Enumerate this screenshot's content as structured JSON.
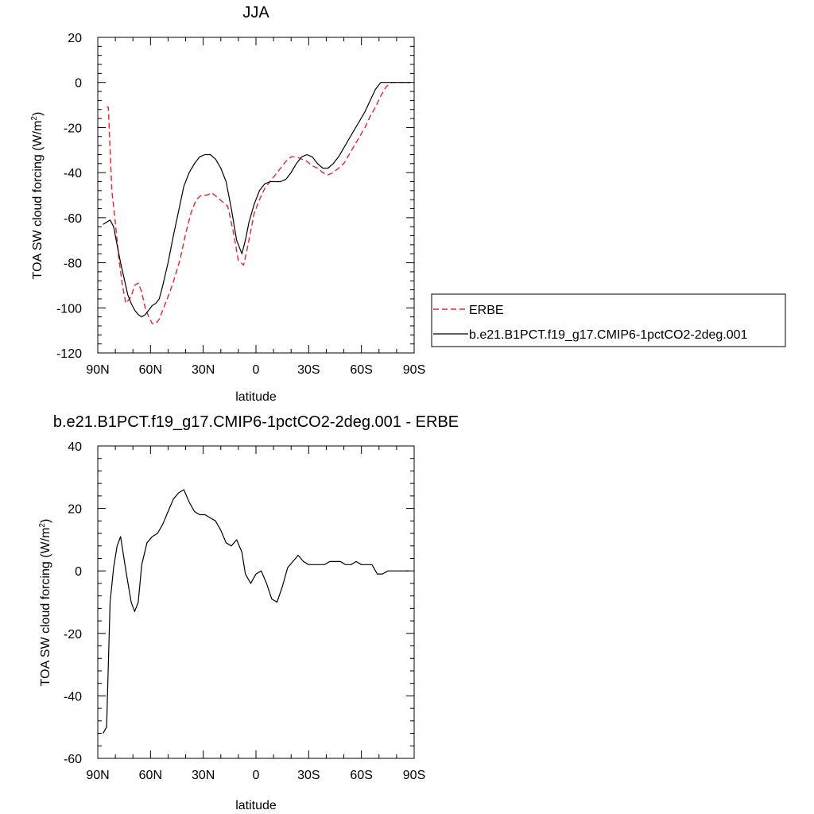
{
  "chart_data": [
    {
      "type": "line",
      "title": "JJA",
      "xlabel": "latitude",
      "ylabel_main": "TOA SW cloud forcing (W/m",
      "ylabel_sup": "2",
      "ylabel_tail": ")",
      "xlim": [
        90,
        -90
      ],
      "ylim": [
        -120,
        20
      ],
      "x_ticks": [
        90,
        60,
        30,
        0,
        -30,
        -60,
        -90
      ],
      "x_tick_labels": [
        "90N",
        "60N",
        "30N",
        "0",
        "30S",
        "60S",
        "90S"
      ],
      "y_ticks": [
        20,
        0,
        -20,
        -40,
        -60,
        -80,
        -100,
        -120
      ],
      "y_tick_labels": [
        "20",
        "0",
        "-20",
        "-40",
        "-60",
        "-80",
        "-100",
        "-120"
      ],
      "legend_position": "right",
      "series": [
        {
          "name": "ERBE",
          "color": "#e8222a",
          "dash": "dashed",
          "x": [
            85,
            84,
            83,
            82,
            80,
            78,
            76,
            74,
            71,
            69,
            67,
            65,
            63,
            61,
            59,
            57,
            55,
            52,
            49,
            46,
            43,
            40,
            37,
            34,
            31,
            28,
            25,
            22,
            19,
            16,
            13,
            10,
            7,
            5,
            3,
            1,
            -2,
            -5,
            -8,
            -11,
            -14,
            -17,
            -20,
            -23,
            -26,
            -29,
            -32,
            -35,
            -38,
            -41,
            -44,
            -47,
            -50,
            -53,
            -56,
            -59,
            -62,
            -65,
            -68,
            -71,
            -74,
            -77,
            -80,
            -83,
            -86,
            -88
          ],
          "y": [
            -11,
            -11,
            -30,
            -48,
            -62,
            -78,
            -90,
            -98,
            -95,
            -90,
            -89,
            -93,
            -100,
            -104,
            -107,
            -107,
            -105,
            -99,
            -93,
            -86,
            -78,
            -67,
            -58,
            -52,
            -50,
            -50,
            -49,
            -51,
            -53,
            -55,
            -66,
            -79,
            -81,
            -74,
            -66,
            -58,
            -52,
            -47,
            -44,
            -41,
            -38,
            -35,
            -33,
            -33,
            -34,
            -35,
            -37,
            -38,
            -40,
            -41,
            -40,
            -38,
            -36,
            -32,
            -28,
            -24,
            -20,
            -15,
            -11,
            -6,
            -2,
            0,
            0,
            0,
            0,
            0
          ]
        },
        {
          "name": "b.e21.B1PCT.f19_g17.CMIP6-1pctCO2-2deg.001",
          "color": "#000000",
          "dash": "solid",
          "x": [
            87,
            85,
            83,
            81,
            79,
            77,
            75,
            73,
            71,
            69,
            67,
            65,
            63,
            61,
            59,
            57,
            55,
            53,
            50,
            47,
            44,
            41,
            38,
            35,
            32,
            29,
            26,
            23,
            20,
            17,
            14,
            11,
            8,
            6,
            4,
            1,
            -2,
            -5,
            -8,
            -11,
            -14,
            -17,
            -20,
            -23,
            -26,
            -29,
            -32,
            -35,
            -38,
            -41,
            -44,
            -47,
            -50,
            -53,
            -56,
            -59,
            -62,
            -65,
            -68,
            -71,
            -74,
            -77,
            -80,
            -83,
            -86,
            -88
          ],
          "y": [
            -63,
            -62,
            -61,
            -64,
            -72,
            -80,
            -87,
            -94,
            -98,
            -101,
            -103,
            -104,
            -103,
            -101,
            -99,
            -98,
            -96,
            -90,
            -80,
            -68,
            -57,
            -46,
            -40,
            -36,
            -33,
            -32,
            -32,
            -34,
            -38,
            -44,
            -56,
            -70,
            -76,
            -70,
            -62,
            -54,
            -48,
            -45,
            -44,
            -44,
            -44,
            -43,
            -40,
            -36,
            -33,
            -32,
            -33,
            -36,
            -38,
            -38,
            -36,
            -33,
            -29,
            -25,
            -21,
            -17,
            -13,
            -8,
            -3,
            0,
            0,
            0,
            0,
            0,
            0,
            0
          ]
        }
      ]
    },
    {
      "type": "line",
      "title": "b.e21.B1PCT.f19_g17.CMIP6-1pctCO2-2deg.001 - ERBE",
      "xlabel": "latitude",
      "ylabel_main": "TOA SW cloud forcing (W/m",
      "ylabel_sup": "2",
      "ylabel_tail": ")",
      "xlim": [
        90,
        -90
      ],
      "ylim": [
        -60,
        40
      ],
      "x_ticks": [
        90,
        60,
        30,
        0,
        -30,
        -60,
        -90
      ],
      "x_tick_labels": [
        "90N",
        "60N",
        "30N",
        "0",
        "30S",
        "60S",
        "90S"
      ],
      "y_ticks": [
        40,
        20,
        0,
        -20,
        -40,
        -60
      ],
      "y_tick_labels": [
        "40",
        "20",
        "0",
        "-20",
        "-40",
        "-60"
      ],
      "series": [
        {
          "color": "#000000",
          "dash": "solid",
          "x": [
            87,
            85,
            83,
            81,
            79,
            77,
            74,
            71,
            69,
            67,
            65,
            62,
            59,
            56,
            53,
            50,
            47,
            44,
            41,
            38,
            35,
            32,
            29,
            26,
            23,
            20,
            17,
            14,
            11,
            8,
            6,
            3,
            0,
            -3,
            -6,
            -9,
            -12,
            -15,
            -18,
            -21,
            -24,
            -27,
            -30,
            -33,
            -36,
            -39,
            -42,
            -45,
            -48,
            -51,
            -54,
            -57,
            -60,
            -63,
            -66,
            -69,
            -72,
            -75,
            -78,
            -81,
            -84,
            -87
          ],
          "y": [
            -52,
            -50,
            -10,
            1,
            8,
            11,
            0,
            -10,
            -13,
            -10,
            2,
            9,
            11,
            12,
            15,
            19,
            23,
            25,
            26,
            22,
            19,
            18,
            18,
            17,
            16,
            13,
            9,
            8,
            10,
            6,
            -1,
            -4,
            -1,
            0,
            -4,
            -9,
            -10,
            -5,
            1,
            3,
            5,
            3,
            2,
            2,
            2,
            2,
            3,
            3,
            3,
            2,
            2,
            3,
            2,
            2,
            2,
            -1,
            -1,
            0,
            0,
            0,
            0,
            0
          ]
        }
      ]
    }
  ]
}
